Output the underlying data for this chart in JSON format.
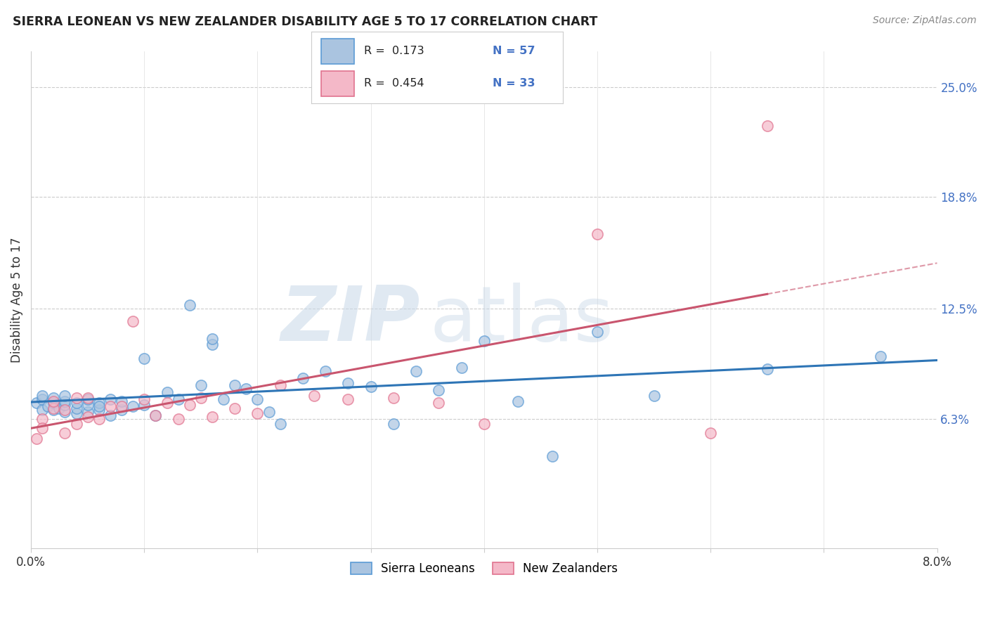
{
  "title": "SIERRA LEONEAN VS NEW ZEALANDER DISABILITY AGE 5 TO 17 CORRELATION CHART",
  "source": "Source: ZipAtlas.com",
  "ylabel": "Disability Age 5 to 17",
  "ytick_labels": [
    "6.3%",
    "12.5%",
    "18.8%",
    "25.0%"
  ],
  "ytick_values": [
    0.063,
    0.125,
    0.188,
    0.25
  ],
  "xlim": [
    0.0,
    0.08
  ],
  "ylim": [
    -0.01,
    0.27
  ],
  "color_sl": "#aac4e0",
  "color_sl_edge": "#5b9bd5",
  "color_nz": "#f4b8c8",
  "color_nz_edge": "#e0738f",
  "color_line_sl": "#2e75b6",
  "color_line_nz": "#c9556e",
  "legend_r1_label": "R =  0.173",
  "legend_n1_label": "N = 57",
  "legend_r2_label": "R =  0.454",
  "legend_n2_label": "N = 33",
  "sl_x": [
    0.0005,
    0.001,
    0.001,
    0.001,
    0.0015,
    0.002,
    0.002,
    0.002,
    0.0025,
    0.003,
    0.003,
    0.003,
    0.003,
    0.004,
    0.004,
    0.004,
    0.005,
    0.005,
    0.005,
    0.006,
    0.006,
    0.006,
    0.007,
    0.007,
    0.008,
    0.008,
    0.009,
    0.01,
    0.01,
    0.011,
    0.012,
    0.013,
    0.014,
    0.015,
    0.016,
    0.016,
    0.017,
    0.018,
    0.019,
    0.02,
    0.021,
    0.022,
    0.024,
    0.026,
    0.028,
    0.03,
    0.032,
    0.034,
    0.036,
    0.038,
    0.04,
    0.043,
    0.046,
    0.05,
    0.055,
    0.065,
    0.075
  ],
  "sl_y": [
    0.072,
    0.068,
    0.074,
    0.076,
    0.07,
    0.068,
    0.072,
    0.075,
    0.069,
    0.067,
    0.071,
    0.073,
    0.076,
    0.066,
    0.069,
    0.072,
    0.067,
    0.071,
    0.074,
    0.068,
    0.072,
    0.07,
    0.065,
    0.074,
    0.068,
    0.073,
    0.07,
    0.097,
    0.071,
    0.065,
    0.078,
    0.074,
    0.127,
    0.082,
    0.105,
    0.108,
    0.074,
    0.082,
    0.08,
    0.074,
    0.067,
    0.06,
    0.086,
    0.09,
    0.083,
    0.081,
    0.06,
    0.09,
    0.079,
    0.092,
    0.107,
    0.073,
    0.042,
    0.112,
    0.076,
    0.091,
    0.098
  ],
  "nz_x": [
    0.0005,
    0.001,
    0.001,
    0.002,
    0.002,
    0.003,
    0.003,
    0.004,
    0.004,
    0.005,
    0.005,
    0.006,
    0.007,
    0.008,
    0.009,
    0.01,
    0.011,
    0.012,
    0.013,
    0.014,
    0.015,
    0.016,
    0.018,
    0.02,
    0.022,
    0.025,
    0.028,
    0.032,
    0.036,
    0.04,
    0.05,
    0.06,
    0.065
  ],
  "nz_y": [
    0.052,
    0.063,
    0.058,
    0.069,
    0.073,
    0.055,
    0.068,
    0.06,
    0.075,
    0.064,
    0.075,
    0.063,
    0.07,
    0.07,
    0.118,
    0.074,
    0.065,
    0.072,
    0.063,
    0.071,
    0.075,
    0.064,
    0.069,
    0.066,
    0.082,
    0.076,
    0.074,
    0.075,
    0.072,
    0.06,
    0.167,
    0.055,
    0.228
  ],
  "watermark_zip": "ZIP",
  "watermark_atlas": "atlas"
}
